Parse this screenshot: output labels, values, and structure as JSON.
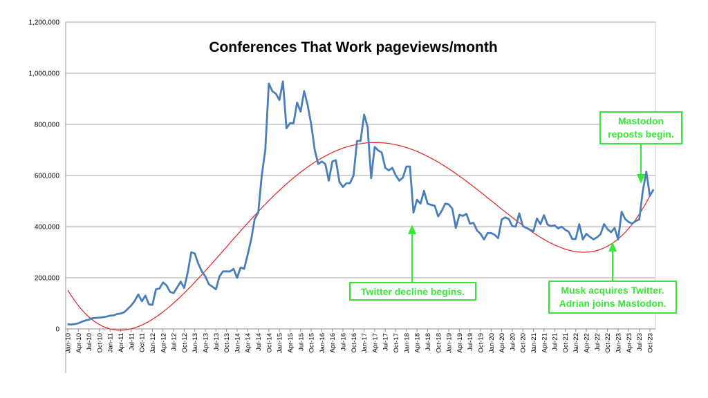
{
  "chart_data": {
    "type": "line",
    "title": "Conferences That Work pageviews/month",
    "xlabel": "",
    "ylabel": "",
    "ylim": [
      0,
      1200000
    ],
    "grid": true,
    "y_ticks": [
      "0",
      "200,000",
      "400,000",
      "600,000",
      "800,000",
      "1,000,000",
      "1,200,000"
    ],
    "x_ticks": [
      "Jan-10",
      "Apr-10",
      "Jul-10",
      "Oct-10",
      "Jan-11",
      "Apr-11",
      "Jul-11",
      "Oct-11",
      "Jan-12",
      "Apr-12",
      "Jul-12",
      "Oct-12",
      "Jan-13",
      "Apr-13",
      "Jul-13",
      "Oct-13",
      "Jan-14",
      "Apr-14",
      "Jul-14",
      "Oct-14",
      "Jan-15",
      "Apr-15",
      "Jul-15",
      "Oct-15",
      "Jan-16",
      "Apr-16",
      "Jul-16",
      "Oct-16",
      "Jan-17",
      "Apr-17",
      "Jul-17",
      "Oct-17",
      "Jan-18",
      "Apr-18",
      "Jul-18",
      "Oct-18",
      "Jan-19",
      "Apr-19",
      "Jul-19",
      "Oct-19",
      "Jan-20",
      "Apr-20",
      "Jul-20",
      "Oct-20",
      "Jan-21",
      "Apr-21",
      "Jul-21",
      "Oct-21",
      "Jan-22",
      "Apr-22",
      "Jul-22",
      "Oct-22",
      "Jan-23",
      "Apr-23",
      "Jul-23",
      "Oct-23"
    ],
    "line_color": "#4a7ebb",
    "trend_color": "#e03030",
    "series": [
      {
        "values": [
          18000,
          17000,
          19000,
          22000,
          28000,
          33000,
          36000,
          42000,
          43000,
          44000,
          46000,
          48000,
          52000,
          53000,
          58000,
          60000,
          65000,
          78000,
          92000,
          110000,
          135000,
          108000,
          130000,
          96000,
          94000,
          155000,
          158000,
          182000,
          170000,
          145000,
          140000,
          162000,
          185000,
          160000,
          220000,
          300000,
          295000,
          255000,
          225000,
          205000,
          175000,
          165000,
          155000,
          205000,
          225000,
          225000,
          225000,
          235000,
          200000,
          240000,
          235000,
          290000,
          350000,
          430000,
          455000,
          600000,
          700000,
          960000,
          930000,
          920000,
          895000,
          968000,
          785000,
          805000,
          805000,
          885000,
          850000,
          930000,
          875000,
          800000,
          700000,
          645000,
          655000,
          645000,
          580000,
          655000,
          660000,
          575000,
          555000,
          570000,
          570000,
          600000,
          735000,
          735000,
          838000,
          790000,
          590000,
          712000,
          698000,
          690000,
          630000,
          620000,
          630000,
          600000,
          580000,
          592000,
          635000,
          635000,
          455000,
          505000,
          490000,
          540000,
          490000,
          485000,
          482000,
          440000,
          462000,
          490000,
          487000,
          470000,
          395000,
          446000,
          442000,
          450000,
          412000,
          415000,
          385000,
          372000,
          350000,
          375000,
          375000,
          368000,
          355000,
          428000,
          436000,
          430000,
          402000,
          400000,
          452000,
          402000,
          395000,
          388000,
          382000,
          432000,
          410000,
          445000,
          408000,
          402000,
          405000,
          393000,
          400000,
          388000,
          380000,
          352000,
          352000,
          410000,
          350000,
          372000,
          360000,
          350000,
          358000,
          370000,
          410000,
          390000,
          378000,
          395000,
          350000,
          458000,
          430000,
          418000,
          412000,
          422000,
          428000,
          540000,
          615000,
          520000,
          545000
        ]
      }
    ],
    "trend": {
      "type": "polynomial",
      "values_at_points": {
        "Jan-10": 152000,
        "Jan-11": 0,
        "Apr-16": 690000,
        "Apr-21": 350000,
        "Oct-23": 520000
      }
    },
    "annotations": [
      {
        "lines": [
          "Twitter decline begins."
        ],
        "target": "Jan-18"
      },
      {
        "lines": [
          "Musk acquires Twitter.",
          "Adrian joins Mastodon."
        ],
        "target": "Oct-22"
      },
      {
        "lines": [
          "Mastodon",
          "reposts begin."
        ],
        "target": "Jul-23"
      }
    ],
    "annotation_color": "#39e639"
  }
}
